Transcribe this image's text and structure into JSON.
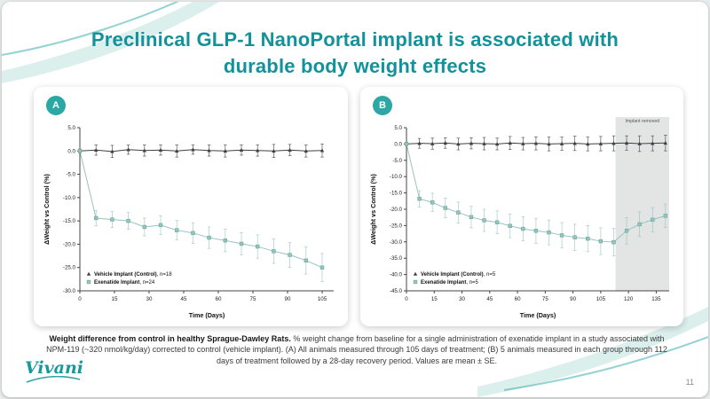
{
  "slide": {
    "title_line1": "Preclinical GLP-1 NanoPortal implant is associated with",
    "title_line2": "durable body weight effects",
    "page_number": "11",
    "logo_text": "Vivani",
    "caption": {
      "bold": "Weight difference from control in healthy Sprague-Dawley Rats.",
      "rest": " % weight change from baseline for a single administration of exenatide implant in a study associated with NPM-119 (~320 nmol/kg/day) corrected to control (vehicle implant). (A) All animals measured through 105 days of treatment; (B) 5 animals measured in each group through 112 days of treatment followed by a 28-day recovery period. Values are mean ± SE."
    }
  },
  "colors": {
    "title_teal": "#12929a",
    "badge_teal": "#2ba8a5",
    "vehicle_series": "#3f4043",
    "exenatide_series": "#96c5bd",
    "shade_gray": "#e3e5e5",
    "axis": "#444444"
  },
  "chart_data": [
    {
      "type": "line",
      "panel_label": "A",
      "xlabel": "Time (Days)",
      "ylabel": "ΔWeight vs Control (%)",
      "xlim": [
        0,
        110
      ],
      "ylim": [
        -30,
        5
      ],
      "xticks": [
        0,
        15,
        30,
        45,
        60,
        75,
        90,
        105
      ],
      "yticks": [
        5,
        0,
        -5,
        -10,
        -15,
        -20,
        -25,
        -30
      ],
      "legend_position": "bottom-left",
      "grid": false,
      "series": [
        {
          "name": "Vehicle Implant (Control)",
          "n_label": ", n=18",
          "marker": "triangle",
          "color": "#3f4043",
          "x": [
            0,
            7,
            14,
            21,
            28,
            35,
            42,
            49,
            56,
            63,
            70,
            77,
            84,
            91,
            98,
            105
          ],
          "y": [
            0,
            0.2,
            -0.1,
            0.3,
            0.1,
            0.2,
            0,
            0.3,
            0.1,
            0,
            0.2,
            0.1,
            0,
            0.2,
            0,
            0.1
          ],
          "err": [
            0.4,
            1.1,
            1.3,
            1.0,
            1.2,
            1.1,
            1.3,
            1.0,
            1.2,
            1.3,
            1.1,
            1.2,
            1.4,
            1.2,
            1.3,
            1.4
          ]
        },
        {
          "name": "Exenatide Implant",
          "n_label": ", n=24",
          "marker": "square",
          "color": "#96c5bd",
          "stroke": "#6ba59d",
          "x": [
            0,
            7,
            14,
            21,
            28,
            35,
            42,
            49,
            56,
            63,
            70,
            77,
            84,
            91,
            98,
            105
          ],
          "y": [
            0,
            -14.4,
            -14.7,
            -15.0,
            -16.3,
            -15.9,
            -17.0,
            -17.6,
            -18.6,
            -19.2,
            -19.9,
            -20.5,
            -21.5,
            -22.3,
            -23.5,
            -25.0
          ],
          "err": [
            0.4,
            1.6,
            1.7,
            1.8,
            1.9,
            2.0,
            2.1,
            2.2,
            2.3,
            2.4,
            2.4,
            2.5,
            2.6,
            2.7,
            2.9,
            3.0
          ]
        }
      ]
    },
    {
      "type": "line",
      "panel_label": "B",
      "xlabel": "Time (Days)",
      "ylabel": "ΔWeight vs Control (%)",
      "xlim": [
        0,
        142
      ],
      "ylim": [
        -45,
        5
      ],
      "xticks": [
        0,
        15,
        30,
        45,
        60,
        75,
        90,
        105,
        120,
        135
      ],
      "yticks": [
        5,
        0,
        -5,
        -10,
        -15,
        -20,
        -25,
        -30,
        -35,
        -40,
        -45
      ],
      "legend_position": "bottom-left",
      "grid": false,
      "shade": {
        "x0": 113,
        "x1": 142,
        "label": "Implant removed",
        "color": "#e3e5e5"
      },
      "series": [
        {
          "name": "Vehicle Implant (Control)",
          "n_label": ", n=5",
          "marker": "triangle",
          "color": "#3f4043",
          "x": [
            0,
            7,
            14,
            21,
            28,
            35,
            42,
            49,
            56,
            63,
            70,
            77,
            84,
            91,
            98,
            105,
            112,
            119,
            126,
            133,
            140
          ],
          "y": [
            0,
            0.2,
            0.1,
            0.3,
            0,
            0.2,
            0.1,
            0,
            0.3,
            0.1,
            0.2,
            0,
            0.1,
            0.2,
            0,
            0.1,
            0.2,
            0.3,
            0.1,
            0.2,
            0.3
          ],
          "err": [
            0.5,
            1.5,
            1.7,
            1.6,
            1.8,
            1.7,
            1.9,
            1.8,
            2.0,
            1.9,
            2.0,
            2.1,
            2.0,
            2.2,
            2.1,
            2.2,
            2.3,
            2.2,
            2.4,
            2.3,
            2.4
          ]
        },
        {
          "name": "Exenatide Implant",
          "n_label": ", n=5",
          "marker": "square",
          "color": "#96c5bd",
          "stroke": "#6ba59d",
          "x": [
            0,
            7,
            14,
            21,
            28,
            35,
            42,
            49,
            56,
            63,
            70,
            77,
            84,
            91,
            98,
            105,
            112,
            119,
            126,
            133,
            140
          ],
          "y": [
            0,
            -16.8,
            -17.9,
            -19.6,
            -21.0,
            -22.4,
            -23.4,
            -24.0,
            -25.1,
            -26.0,
            -26.6,
            -27.1,
            -28.0,
            -28.6,
            -29.0,
            -29.8,
            -30.1,
            -26.6,
            -24.6,
            -23.2,
            -22.0
          ],
          "err": [
            0.5,
            2.5,
            2.8,
            3.0,
            3.2,
            3.3,
            3.4,
            3.5,
            3.6,
            3.7,
            3.8,
            3.8,
            3.9,
            4.0,
            4.0,
            4.1,
            4.2,
            4.0,
            3.8,
            3.7,
            3.6
          ]
        }
      ]
    }
  ]
}
